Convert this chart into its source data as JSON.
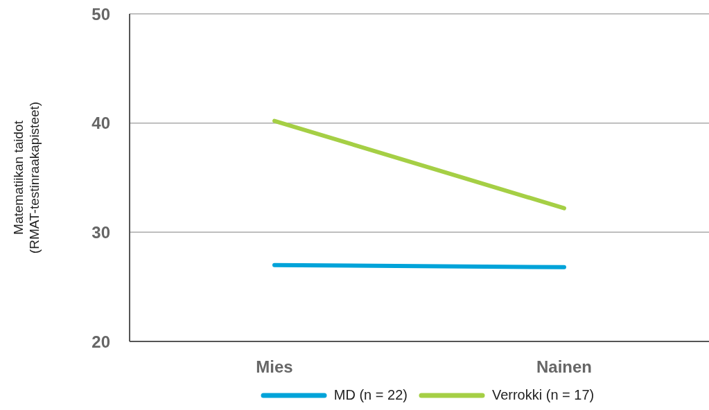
{
  "chart_data": {
    "type": "line",
    "ylabel": "Matematiikan taidot (RMAT-testinraakapisteet)",
    "categories": [
      "Mies",
      "Nainen"
    ],
    "series": [
      {
        "name": "MD (n = 22)",
        "color": "#00a3d9",
        "values": [
          27.0,
          26.8
        ]
      },
      {
        "name": "Verrokki (n = 17)",
        "color": "#a5cf45",
        "values": [
          40.2,
          32.2
        ]
      }
    ],
    "ylim": [
      20,
      50
    ],
    "yticks": [
      20,
      30,
      40,
      50
    ],
    "grid": "y",
    "legend": "bottom",
    "marker": "none",
    "line_style": "solid"
  }
}
